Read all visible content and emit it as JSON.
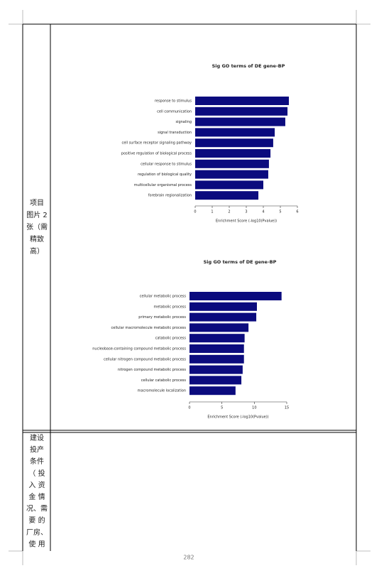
{
  "cells": [
    {
      "lines": [
        "项目",
        "图片 2",
        "张（需",
        "精致",
        "高）"
      ]
    },
    {
      "lines": [
        "建设",
        "投产",
        "条件",
        "（ 投",
        "入 资",
        "金 情",
        "况、需",
        "要 的",
        "厂房、",
        "使 用"
      ]
    }
  ],
  "chart_data": [
    {
      "type": "bar",
      "orientation": "horizontal",
      "title": "Sig GO terms of DE gene-BP",
      "x_label": "Enrichment Score (-log10(Pvalue))",
      "categories": [
        "response to stimulus",
        "cell communication",
        "signaling",
        "signal transduction",
        "cell surface receptor signaling pathway",
        "positive regulation of biological process",
        "cellular response to stimulus",
        "regulation of biological quality",
        "multicellular organismal process",
        "forebrain regionalization"
      ],
      "values": [
        5.5,
        5.42,
        5.29,
        4.67,
        4.58,
        4.42,
        4.33,
        4.29,
        4.0,
        3.71
      ],
      "color": "#0b0b7e",
      "xlim": [
        0,
        6
      ],
      "xticks": [
        0,
        1,
        2,
        3,
        4,
        5,
        6
      ]
    },
    {
      "type": "bar",
      "orientation": "horizontal",
      "title": "Sig GO terms of DE gene-BP",
      "x_label": "Enrichment Score (-log10(Pvalue))",
      "categories": [
        "cellular metabolic process",
        "metabolic process",
        "primary metabolic process",
        "cellular macromolecule metabolic process",
        "catabolic process",
        "nucleobase-containing compound metabolic process",
        "cellular nitrogen compound metabolic process",
        "nitrogen compound metabolic process",
        "cellular catabolic process",
        "macromolecule localization"
      ],
      "values": [
        14.2,
        10.4,
        10.3,
        9.1,
        8.5,
        8.4,
        8.4,
        8.2,
        8.0,
        7.1
      ],
      "color": "#0b0b7e",
      "xlim": [
        0,
        15
      ],
      "xticks": [
        0,
        5,
        10,
        15
      ]
    }
  ],
  "page_number": "282"
}
